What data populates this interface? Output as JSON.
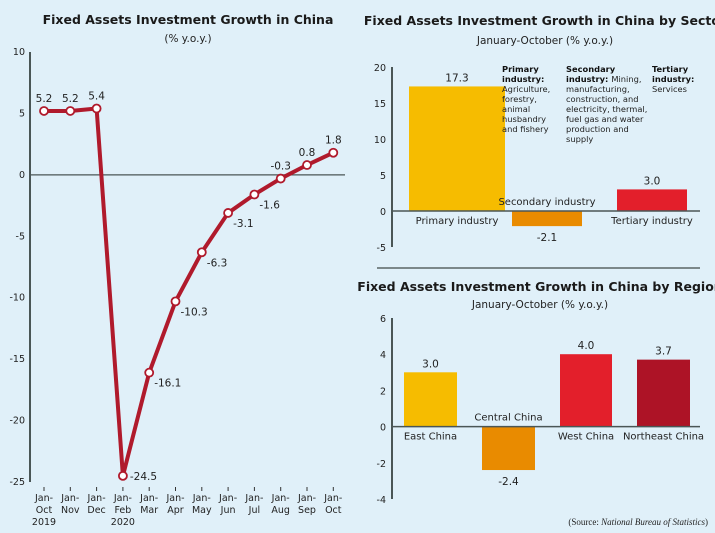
{
  "colors": {
    "line": "#b01a2c",
    "axis": "#4a5656",
    "yellow": "#f6bc00",
    "orange": "#e98b00",
    "red": "#e31f2b",
    "darkred": "#ad1326",
    "background": "#e0f0f9"
  },
  "source_prefix": "(Source: ",
  "source_name": "National Bureau of Statistics",
  "source_suffix": ")",
  "chart_data": [
    {
      "type": "line",
      "title": "Fixed Assets Investment Growth in China",
      "subtitle": "(% y.o.y.)",
      "categories": [
        [
          "Jan-",
          "Oct",
          "2019"
        ],
        [
          "Jan-",
          "Nov"
        ],
        [
          "Jan-",
          "Dec"
        ],
        [
          "Jan-",
          "Feb",
          "2020"
        ],
        [
          "Jan-",
          "Mar"
        ],
        [
          "Jan-",
          "Apr"
        ],
        [
          "Jan-",
          "May"
        ],
        [
          "Jan-",
          "Jun"
        ],
        [
          "Jan-",
          "Jul"
        ],
        [
          "Jan-",
          "Aug"
        ],
        [
          "Jan-",
          "Sep"
        ],
        [
          "Jan-",
          "Oct"
        ]
      ],
      "values": [
        5.2,
        5.2,
        5.4,
        -24.5,
        -16.1,
        -10.3,
        -6.3,
        -3.1,
        -1.6,
        -0.3,
        0.8,
        1.8
      ],
      "value_labels": [
        "5.2",
        "5.2",
        "5.4",
        "-24.5",
        "-16.1",
        "-10.3",
        "-6.3",
        "-3.1",
        "-1.6",
        "-0.3",
        "0.8",
        "1.8"
      ],
      "ylim": [
        -25,
        10
      ],
      "yticks": [
        "10",
        "5",
        "0",
        "-5",
        "-10",
        "-15",
        "-20",
        "-25"
      ],
      "grid": false
    },
    {
      "type": "bar",
      "title": "Fixed Assets Investment Growth in China by Sector",
      "subtitle": "January-October (% y.o.y.)",
      "categories": [
        "Primary industry",
        "Secondary industry",
        "Tertiary industry"
      ],
      "values": [
        17.3,
        -2.1,
        3.0
      ],
      "value_labels": [
        "17.3",
        "-2.1",
        "3.0"
      ],
      "bar_colors": [
        "#f6bc00",
        "#e98b00",
        "#e31f2b"
      ],
      "ylim": [
        -5,
        20
      ],
      "yticks": [
        "20",
        "15",
        "10",
        "5",
        "0",
        "-5"
      ],
      "notes": [
        {
          "head": [
            "Primary",
            "industry:"
          ],
          "body": [
            "Agriculture,",
            "forestry,",
            "animal",
            "husbandry",
            "and fishery"
          ]
        },
        {
          "head": [
            "Secondary",
            "industry:"
          ],
          "body_first": "Mining,",
          "body": [
            "manufacturing,",
            "construction, and",
            "electricity, thermal,",
            "fuel gas and water",
            "production and",
            "supply"
          ]
        },
        {
          "head": [
            "Tertiary",
            "industry:"
          ],
          "body": [
            "Services"
          ]
        }
      ]
    },
    {
      "type": "bar",
      "title": "Fixed Assets Investment Growth in China by Region",
      "subtitle": "January-October (% y.o.y.)",
      "categories": [
        "East China",
        "Central China",
        "West China",
        "Northeast China"
      ],
      "values": [
        3.0,
        -2.4,
        4.0,
        3.7
      ],
      "value_labels": [
        "3.0",
        "-2.4",
        "4.0",
        "3.7"
      ],
      "bar_colors": [
        "#f6bc00",
        "#e98b00",
        "#e31f2b",
        "#ad1326"
      ],
      "ylim": [
        -4,
        6
      ],
      "yticks": [
        "6",
        "4",
        "2",
        "0",
        "-2",
        "-4"
      ]
    }
  ]
}
